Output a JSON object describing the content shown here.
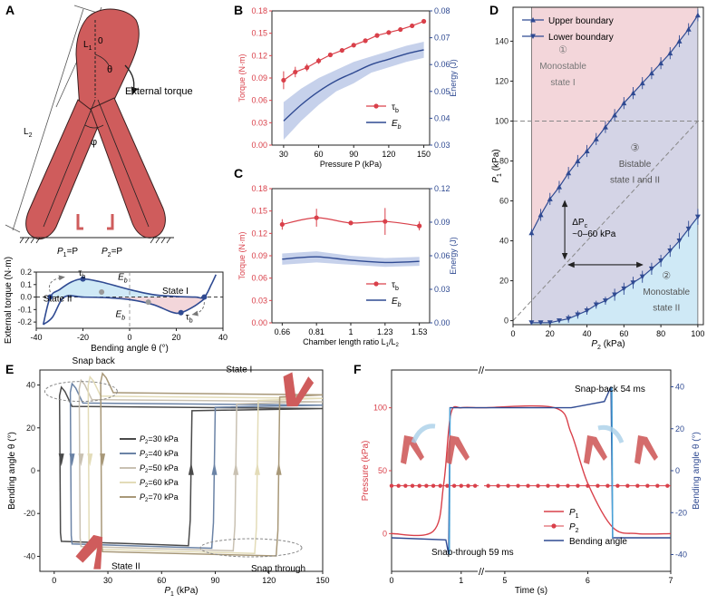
{
  "colors": {
    "red": "#d9404a",
    "blue": "#2f4a92",
    "lightblue": "#b8c6e6",
    "pink": "#f3d6da",
    "cyan": "#cfe9f6",
    "lav": "#d4d4e6",
    "arm": "#cf5c5c",
    "black": "#222222"
  },
  "panelA": {
    "letter": "A",
    "labels": {
      "L1": "L",
      "L1sub": "1",
      "L2": "L",
      "L2sub": "2",
      "zero": "0",
      "theta": "θ",
      "phi": "φ",
      "torque": "External torque",
      "P1": "P",
      "P1sub": "1",
      "P1eq": "=P",
      "P2": "P",
      "P2sub": "2",
      "P2eq": "=P"
    }
  },
  "chart_data": [
    {
      "id": "A2",
      "type": "line",
      "xlabel": "Bending angle θ (°)",
      "ylabel": "External torque (N·m)",
      "xlim": [
        -40,
        40
      ],
      "ylim": [
        -0.25,
        0.2
      ],
      "xticks": [
        -40,
        -20,
        0,
        20,
        40
      ],
      "yticks": [
        -0.2,
        -0.1,
        0,
        0.1,
        0.2
      ],
      "annotations": {
        "tau_top": "τ",
        "tau_bottom": "τ",
        "tau_sub": "b",
        "Eb_top": "E",
        "Eb_bottom": "E",
        "Eb_sub": "b",
        "state1": "State I",
        "state2": "State II"
      },
      "curve_upper": [
        [
          -37,
          -0.22
        ],
        [
          -34,
          0
        ],
        [
          -30,
          0.06
        ],
        [
          -25,
          0.12
        ],
        [
          -20,
          0.145
        ],
        [
          -12,
          0.12
        ],
        [
          0,
          0.06
        ],
        [
          10,
          0.02
        ],
        [
          20,
          0.005
        ],
        [
          28,
          0
        ],
        [
          32,
          0
        ],
        [
          35,
          0.1
        ],
        [
          37,
          0.18
        ]
      ],
      "curve_lower": [
        [
          -37,
          -0.22
        ],
        [
          -33,
          -0.16
        ],
        [
          -28,
          0
        ],
        [
          -20,
          0
        ],
        [
          -10,
          -0.005
        ],
        [
          0,
          -0.02
        ],
        [
          10,
          -0.06
        ],
        [
          18,
          -0.12
        ],
        [
          22,
          -0.125
        ],
        [
          28,
          -0.07
        ],
        [
          33,
          0
        ]
      ]
    },
    {
      "id": "B",
      "type": "line",
      "xlabel": "Pressure P (kPa)",
      "ylabel": "Torque (N·m)",
      "y2label": "Energy (J)",
      "xlim": [
        20,
        155
      ],
      "ylim": [
        0,
        0.18
      ],
      "y2lim": [
        0.03,
        0.08
      ],
      "xticks": [
        30,
        60,
        90,
        120,
        150
      ],
      "yticks": [
        0,
        0.03,
        0.06,
        0.09,
        0.12,
        0.15,
        0.18
      ],
      "y2ticks": [
        0.03,
        0.04,
        0.05,
        0.06,
        0.07,
        0.08
      ],
      "tau": {
        "x": [
          30,
          40,
          50,
          60,
          70,
          80,
          90,
          100,
          110,
          120,
          130,
          140,
          150
        ],
        "y": [
          0.087,
          0.098,
          0.104,
          0.113,
          0.121,
          0.127,
          0.134,
          0.14,
          0.147,
          0.151,
          0.155,
          0.16,
          0.166
        ],
        "err": [
          0.012,
          0.007,
          0.005,
          0.004,
          0.003,
          0.003,
          0.003,
          0.003,
          0.003,
          0.003,
          0.003,
          0.003,
          0.003
        ]
      },
      "Eb": {
        "x": [
          30,
          45,
          60,
          75,
          90,
          105,
          120,
          135,
          150
        ],
        "y": [
          0.039,
          0.045,
          0.05,
          0.054,
          0.057,
          0.06,
          0.062,
          0.064,
          0.0655
        ],
        "band": [
          0.007,
          0.006,
          0.005,
          0.004,
          0.004,
          0.003,
          0.003,
          0.003,
          0.003
        ]
      },
      "legend": {
        "tau": "τ",
        "Eb": "E",
        "sub": "b"
      }
    },
    {
      "id": "C",
      "type": "line",
      "xlabel": "Chamber length ratio L",
      "xlabel_sub1": "1",
      "xlabel_slash": "/L",
      "xlabel_sub2": "2",
      "ylabel": "Torque (N·m)",
      "y2label": "Energy (J)",
      "ylim": [
        0,
        0.18
      ],
      "y2lim": [
        0,
        0.12
      ],
      "xticks": [
        "0.66",
        "0.81",
        "1",
        "1.23",
        "1.53"
      ],
      "yticks": [
        0,
        0.03,
        0.06,
        0.09,
        0.12,
        0.15,
        0.18
      ],
      "y2ticks": [
        0,
        0.03,
        0.06,
        0.09,
        0.12
      ],
      "tau": {
        "y": [
          0.132,
          0.141,
          0.134,
          0.136,
          0.13
        ],
        "err": [
          0.007,
          0.012,
          0.003,
          0.018,
          0.006
        ]
      },
      "Eb": {
        "y": [
          0.057,
          0.059,
          0.056,
          0.054,
          0.055
        ],
        "band": [
          0.005,
          0.005,
          0.004,
          0.004,
          0.004
        ]
      },
      "legend": {
        "tau": "τ",
        "Eb": "E",
        "sub": "b"
      }
    },
    {
      "id": "D",
      "type": "scatter",
      "xlabel": "P",
      "xlabel_sub": "2",
      "xlabel_unit": " (kPa)",
      "ylabel": "P",
      "ylabel_sub": "1",
      "ylabel_unit": " (kPa)",
      "xlim": [
        0,
        103
      ],
      "ylim": [
        -2,
        157
      ],
      "xticks": [
        0,
        20,
        40,
        60,
        80,
        100
      ],
      "yticks": [
        0,
        20,
        40,
        60,
        80,
        100,
        120,
        140
      ],
      "upper": {
        "x": [
          10,
          15,
          20,
          25,
          30,
          35,
          40,
          45,
          50,
          55,
          60,
          65,
          70,
          75,
          80,
          85,
          90,
          95,
          100
        ],
        "y": [
          44,
          53,
          61,
          67,
          74,
          80,
          85,
          91,
          97,
          103,
          109,
          114,
          119,
          124,
          129,
          134,
          140,
          146,
          153
        ],
        "err": [
          2,
          3,
          3,
          3,
          3,
          3,
          3,
          3,
          3,
          3,
          3,
          3,
          3,
          3,
          3,
          3,
          3,
          3,
          3
        ]
      },
      "lower": {
        "x": [
          10,
          15,
          20,
          25,
          30,
          35,
          40,
          45,
          50,
          55,
          60,
          65,
          70,
          75,
          80,
          85,
          90,
          95,
          100
        ],
        "y": [
          -1,
          -1,
          -1,
          0,
          1,
          3,
          5,
          8,
          10,
          13,
          16,
          19,
          22,
          26,
          30,
          35,
          40,
          46,
          52
        ],
        "err": [
          1,
          1,
          1,
          1,
          2,
          2,
          2,
          2,
          2,
          3,
          3,
          3,
          3,
          3,
          3,
          3,
          4,
          4,
          4
        ]
      },
      "legend": {
        "upper": "Upper boundary",
        "lower": "Lower boundary"
      },
      "regions": {
        "r1num": "①",
        "r1a": "Monostable",
        "r1b": "state I",
        "r3num": "③",
        "r3a": "Bistable",
        "r3b": "state I and II",
        "r2num": "②",
        "r2a": "Monostable",
        "r2b": "state II"
      },
      "delta": {
        "label": "ΔP",
        "sub": "c",
        "range": "~0–60 kPa"
      }
    },
    {
      "id": "E",
      "type": "line",
      "xlabel": "P",
      "xlabel_sub": "1",
      "xlabel_unit": "  (kPa)",
      "ylabel": "Bending angle θ (°)",
      "xlim": [
        -8,
        150
      ],
      "ylim": [
        -47,
        47
      ],
      "xticks": [
        0,
        30,
        60,
        90,
        120,
        150
      ],
      "yticks": [
        -40,
        -20,
        0,
        20,
        40
      ],
      "series": [
        {
          "name": "P",
          "sub": "2",
          "val": "=30 kPa",
          "color": "#4a4a4a",
          "snap_back": 4,
          "snap_through": 75
        },
        {
          "name": "P",
          "sub": "2",
          "val": "=40 kPa",
          "color": "#6b83a6",
          "snap_back": 10,
          "snap_through": 88
        },
        {
          "name": "P",
          "sub": "2",
          "val": "=50 kPa",
          "color": "#c9c1b2",
          "snap_back": 15,
          "snap_through": 100
        },
        {
          "name": "P",
          "sub": "2",
          "val": "=60 kPa",
          "color": "#e3dcb8",
          "snap_back": 20,
          "snap_through": 112
        },
        {
          "name": "P",
          "sub": "2",
          "val": "=70 kPa",
          "color": "#a89878",
          "snap_back": 27,
          "snap_through": 124
        }
      ],
      "annotations": {
        "snap_back": "Snap back",
        "snap_through": "Snap through",
        "state1": "State I",
        "state2": "State II"
      }
    },
    {
      "id": "F",
      "type": "line",
      "xlabel": "Time (s)",
      "ylabel": "Pressure (kPa)",
      "y2label": "Bending angle θ (°)",
      "ylim": [
        -30,
        130
      ],
      "y2lim": [
        -48,
        48
      ],
      "xticks": [
        "0",
        "1",
        "5",
        "6",
        "7"
      ],
      "yticks": [
        0,
        50,
        100
      ],
      "y2ticks": [
        -40,
        -20,
        0,
        20,
        40
      ],
      "legend": {
        "p1": "P",
        "p1sub": "1",
        "p2": "P",
        "p2sub": "2",
        "angle": "Bending angle"
      },
      "annotations": {
        "snapback": "Snap-back 54 ms",
        "snapthrough": "Snap-through 59 ms",
        "brk": "//"
      }
    }
  ],
  "letters": {
    "A": "A",
    "B": "B",
    "C": "C",
    "D": "D",
    "E": "E",
    "F": "F"
  }
}
